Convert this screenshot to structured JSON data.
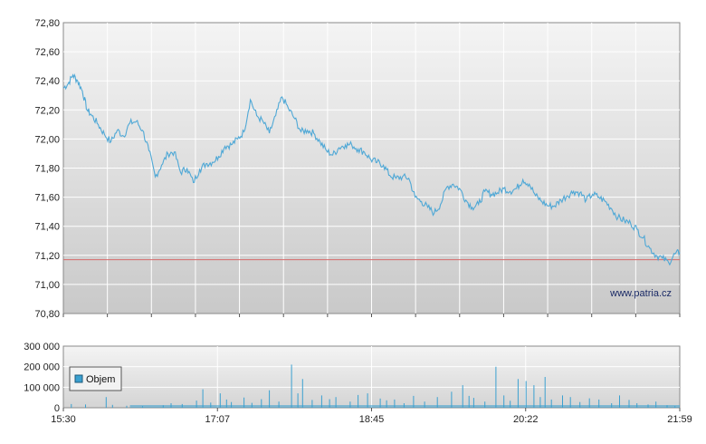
{
  "watermark": "www.patria.cz",
  "colors": {
    "price_line": "#4fa8d6",
    "reference_line": "#d66a6a",
    "volume_bar": "#3aa0d0",
    "grid": "#ffffff",
    "plot_bg_top": "#f4f4f4",
    "plot_bg_bottom": "#c9c9c9"
  },
  "chart_data": [
    {
      "type": "line",
      "title": "",
      "ylim": [
        70.8,
        72.8
      ],
      "y_ticks": [
        "72,80",
        "72,60",
        "72,40",
        "72,20",
        "72,00",
        "71,80",
        "71,60",
        "71,40",
        "71,20",
        "71,00",
        "70,80"
      ],
      "reference_line": 71.17,
      "x_range_minutes": [
        0,
        389
      ],
      "series": [
        {
          "x": [
            0,
            3,
            6,
            9,
            12,
            15,
            18,
            22,
            26,
            30,
            34,
            38,
            42,
            46,
            50,
            54,
            58,
            62,
            66,
            70,
            74,
            78,
            82,
            86,
            90,
            94,
            98,
            102,
            106,
            110,
            114,
            118,
            122,
            126,
            130,
            134,
            138,
            142,
            146,
            150,
            154,
            158,
            162,
            166,
            170,
            174,
            178,
            182,
            186,
            190,
            194,
            198,
            202,
            206,
            210,
            214,
            218,
            222,
            226,
            230,
            234,
            238,
            242,
            246,
            250,
            254,
            258,
            262,
            266,
            270,
            274,
            278,
            282,
            286,
            290,
            294,
            298,
            302,
            306,
            310,
            314,
            318,
            322,
            326,
            330,
            334,
            338,
            342,
            346,
            350,
            354,
            358,
            362,
            366,
            370,
            374,
            378,
            382,
            386,
            389
          ],
          "y": [
            72.35,
            72.38,
            72.44,
            72.4,
            72.33,
            72.2,
            72.16,
            72.1,
            72.03,
            71.98,
            72.06,
            72.02,
            72.11,
            72.12,
            72.06,
            71.92,
            71.74,
            71.82,
            71.9,
            71.91,
            71.77,
            71.8,
            71.7,
            71.79,
            71.83,
            71.84,
            71.88,
            71.95,
            71.96,
            72.0,
            72.05,
            72.27,
            72.16,
            72.12,
            72.04,
            72.16,
            72.29,
            72.21,
            72.14,
            72.05,
            72.06,
            72.04,
            71.98,
            71.92,
            71.89,
            71.94,
            71.96,
            71.96,
            71.93,
            71.91,
            71.86,
            71.84,
            71.82,
            71.75,
            71.73,
            71.74,
            71.73,
            71.6,
            71.57,
            71.53,
            71.49,
            71.55,
            71.67,
            71.69,
            71.66,
            71.58,
            71.53,
            71.55,
            71.64,
            71.62,
            71.63,
            71.66,
            71.64,
            71.66,
            71.72,
            71.69,
            71.61,
            71.57,
            71.54,
            71.54,
            71.58,
            71.61,
            71.64,
            71.63,
            71.58,
            71.62,
            71.6,
            71.57,
            71.52,
            71.46,
            71.44,
            71.42,
            71.38,
            71.32,
            71.25,
            71.2,
            71.18,
            71.15,
            71.21,
            71.22
          ]
        }
      ]
    },
    {
      "type": "bar",
      "title": "",
      "ylim": [
        0,
        300000
      ],
      "y_ticks": [
        "300 000",
        "200 000",
        "100 000",
        "0"
      ],
      "x_ticks": [
        "15:30",
        "17:07",
        "18:45",
        "20:22",
        "21:59"
      ],
      "x_range_minutes": [
        0,
        389
      ],
      "series": [
        {
          "name": "Objem",
          "x": [
            5,
            14,
            27,
            31,
            40,
            50,
            63,
            68,
            75,
            84,
            88,
            93,
            99,
            103,
            106,
            114,
            119,
            125,
            130,
            136,
            144,
            148,
            151,
            157,
            163,
            168,
            172,
            181,
            186,
            192,
            200,
            204,
            209,
            215,
            221,
            228,
            236,
            245,
            252,
            256,
            259,
            266,
            273,
            278,
            282,
            287,
            292,
            297,
            301,
            304,
            308,
            315,
            320,
            326,
            332,
            338,
            346,
            351,
            357,
            362,
            369,
            374,
            381,
            386
          ],
          "values": [
            18000,
            16000,
            52000,
            14000,
            10000,
            8000,
            12000,
            22000,
            18000,
            35000,
            90000,
            25000,
            70000,
            40000,
            28000,
            50000,
            24000,
            42000,
            85000,
            30000,
            210000,
            70000,
            140000,
            38000,
            60000,
            42000,
            52000,
            30000,
            62000,
            70000,
            45000,
            36000,
            40000,
            22000,
            58000,
            30000,
            52000,
            78000,
            110000,
            58000,
            48000,
            30000,
            200000,
            60000,
            34000,
            140000,
            130000,
            110000,
            52000,
            150000,
            40000,
            60000,
            52000,
            28000,
            46000,
            40000,
            22000,
            60000,
            38000,
            22000,
            16000,
            30000,
            12000,
            8000
          ]
        }
      ]
    }
  ]
}
